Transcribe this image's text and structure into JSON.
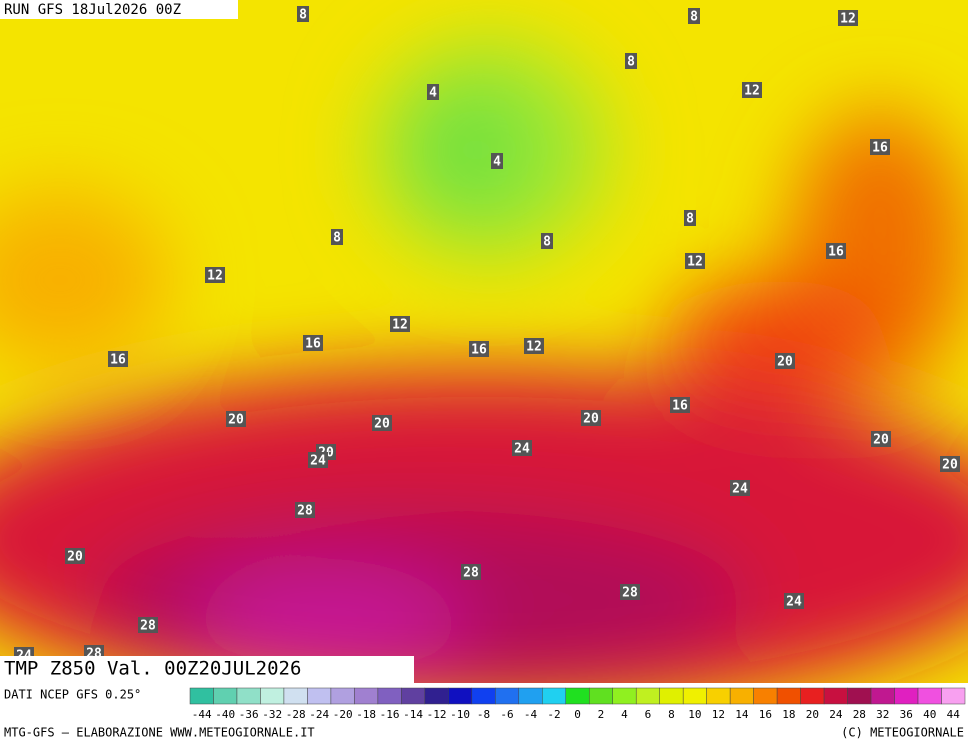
{
  "header": {
    "run": "RUN GFS 18Jul2026 00Z"
  },
  "map": {
    "contour_labels": [
      8,
      8,
      12,
      8,
      4,
      12,
      4,
      16,
      8,
      8,
      8,
      16,
      12,
      12,
      12,
      16,
      12,
      16,
      16,
      20,
      20,
      20,
      20,
      16,
      20,
      24,
      24,
      20,
      20,
      24,
      28,
      20,
      28,
      28,
      28,
      24,
      28,
      24
    ]
  },
  "footer": {
    "title": "TMP Z850 Val. 00Z20JUL2026",
    "source": "DATI NCEP GFS 0.25°",
    "credit": "MTG-GFS — ELABORAZIONE WWW.METEOGIORNALE.IT",
    "copyright": "(C) METEOGIORNALE"
  },
  "legend": {
    "labels": [
      -44,
      -40,
      -36,
      -32,
      -28,
      -24,
      -20,
      -18,
      -16,
      -14,
      -12,
      -10,
      -8,
      -6,
      -4,
      -2,
      0,
      2,
      4,
      6,
      8,
      10,
      12,
      14,
      16,
      18,
      20,
      24,
      28,
      32,
      36,
      40,
      44
    ],
    "colors": [
      "#30c0a0",
      "#60d0b0",
      "#90e0c8",
      "#c0f0e0",
      "#d0e0f0",
      "#c0c0f0",
      "#b0a0e0",
      "#a080d0",
      "#8060c0",
      "#6040a0",
      "#302090",
      "#1010c0",
      "#1040f0",
      "#2070f0",
      "#20a0f0",
      "#20d0f0",
      "#20e020",
      "#60e020",
      "#90f020",
      "#c0f020",
      "#e0f000",
      "#f0f000",
      "#f8d000",
      "#f8b000",
      "#f88000",
      "#f05000",
      "#e82020",
      "#c81040",
      "#a01050",
      "#c01890",
      "#e020c0",
      "#f050e0",
      "#f8a0f0"
    ]
  }
}
